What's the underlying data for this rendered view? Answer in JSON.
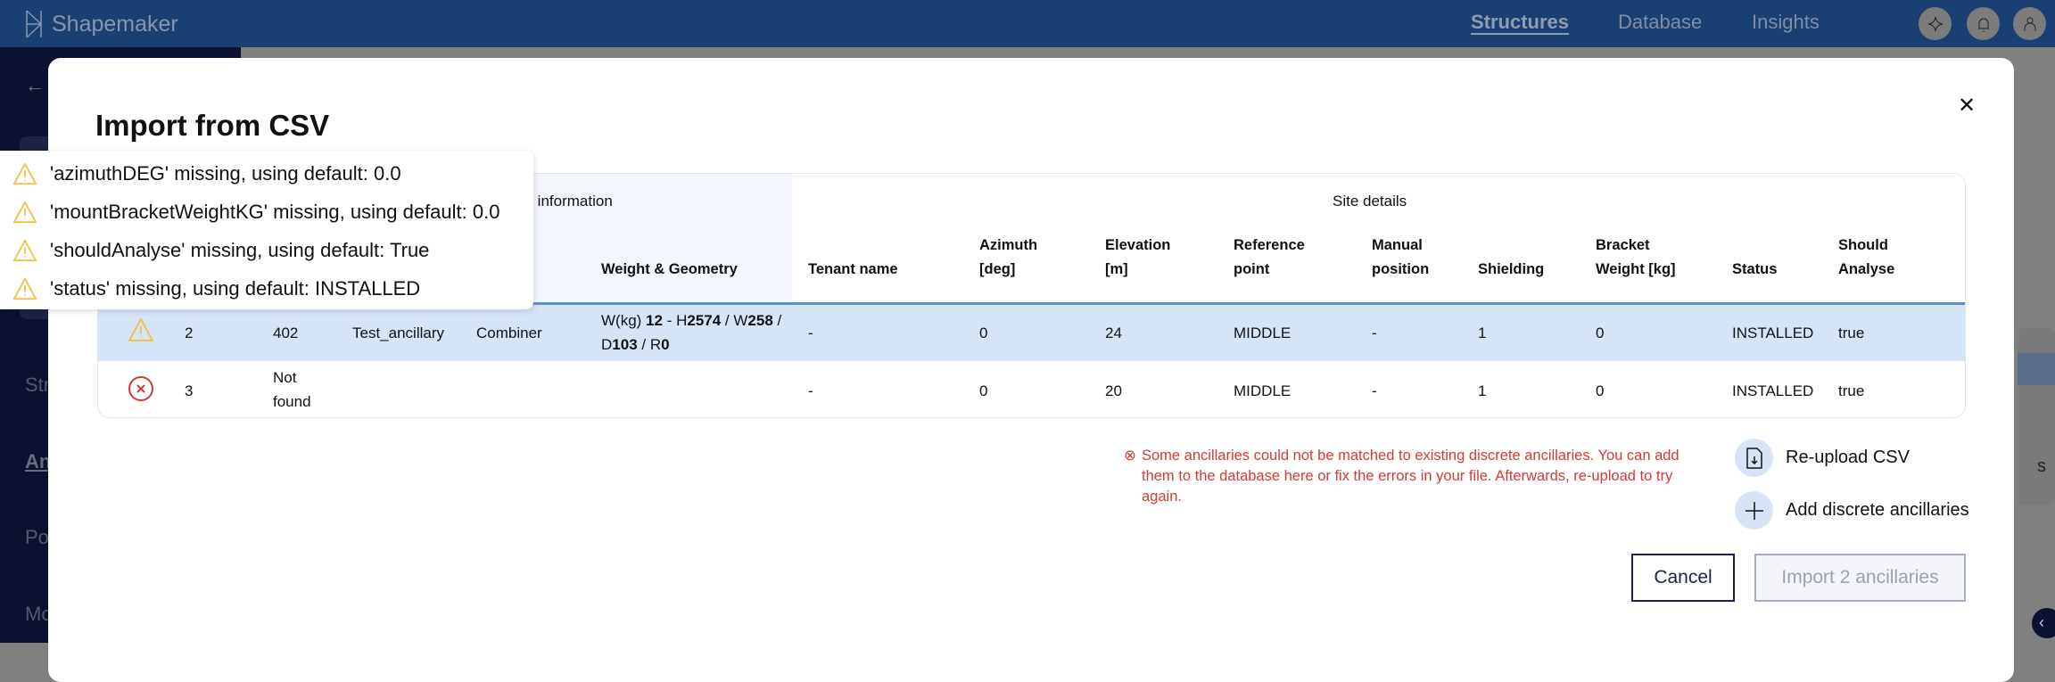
{
  "app": {
    "name": "Shapemaker"
  },
  "topnav": {
    "items": [
      {
        "label": "Structures",
        "active": true
      },
      {
        "label": "Database"
      },
      {
        "label": "Insights"
      }
    ],
    "icons": [
      "sparkle-icon",
      "bell-icon",
      "user-icon"
    ]
  },
  "sidebar": {
    "items": [
      "Str",
      "An",
      "Po",
      "Mo"
    ]
  },
  "background": {
    "card_text": "s"
  },
  "modal": {
    "title": "Import from CSV",
    "table": {
      "groups": {
        "database": "se information",
        "site": "Site details"
      },
      "headers": [
        "Weight & Geometry",
        "Tenant name",
        "Azimuth\n[deg]",
        "Elevation\n[m]",
        "Reference\npoint",
        "Manual\nposition",
        "Shielding",
        "Bracket\nWeight [kg]",
        "Status",
        "Should\nAnalyse"
      ],
      "rows": [
        {
          "status_icon": "warning",
          "row": "2",
          "id": "402",
          "name": "Test_ancillary",
          "type": "Combiner",
          "weight": {
            "w": "12",
            "h": "2574",
            "wd": "258",
            "d": "103",
            "r": "0"
          },
          "tenant": "-",
          "azimuth": "0",
          "elevation": "24",
          "reference": "MIDDLE",
          "manual": "-",
          "shielding": "1",
          "bracket": "0",
          "status": "INSTALLED",
          "analyse": "true"
        },
        {
          "status_icon": "error",
          "row": "3",
          "id": "Not found",
          "name": "",
          "type": "",
          "tenant": "-",
          "azimuth": "0",
          "elevation": "20",
          "reference": "MIDDLE",
          "manual": "-",
          "shielding": "1",
          "bracket": "0",
          "status": "INSTALLED",
          "analyse": "true"
        }
      ]
    },
    "tooltip": [
      "'azimuthDEG' missing, using default: 0.0",
      "'mountBracketWeightKG' missing, using default: 0.0",
      "'shouldAnalyse' missing, using default: True",
      "'status' missing, using default: INSTALLED"
    ],
    "error_message": "Some ancillaries could not be matched to existing discrete ancillaries. You can add them to the database here or fix the errors in your file. Afterwards, re-upload to try again.",
    "actions": {
      "reupload": "Re-upload CSV",
      "add": "Add discrete ancillaries"
    },
    "buttons": {
      "cancel": "Cancel",
      "import": "Import 2 ancillaries"
    }
  },
  "colors": {
    "topbar": "#1a3f72",
    "selected_row": "#d6e4f7",
    "error": "#d23a3a",
    "warning": "#f0c24a"
  }
}
